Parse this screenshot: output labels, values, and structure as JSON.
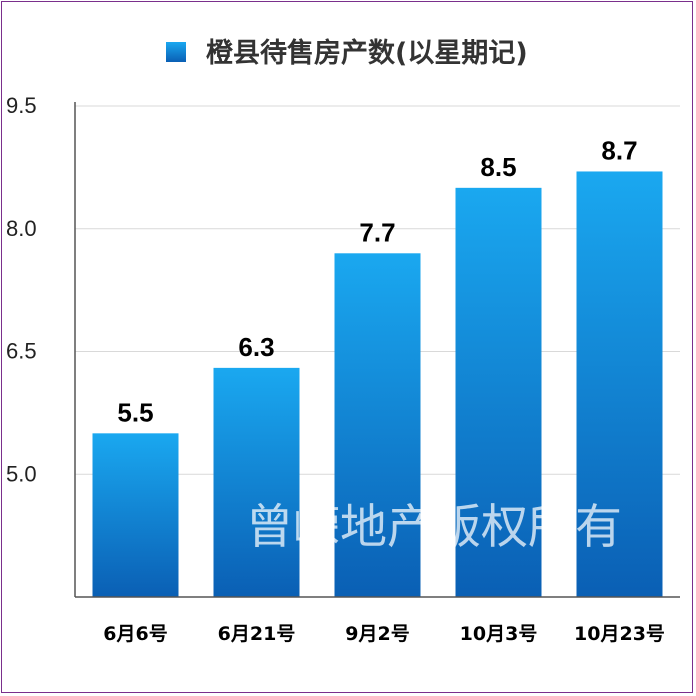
{
  "chart_data": {
    "type": "bar",
    "categories": [
      "6月6号",
      "6月21号",
      "9月2号",
      "10月3号",
      "10月23号"
    ],
    "series": [
      {
        "name": "橙县待售房产数(以星期记)",
        "values": [
          5.5,
          6.3,
          7.7,
          8.5,
          8.7
        ]
      }
    ],
    "data_labels": [
      "5.5",
      "6.3",
      "7.7",
      "8.5",
      "8.7"
    ],
    "ylim": [
      3.5,
      9.5
    ],
    "yticks": [
      5.0,
      6.5,
      8.0,
      9.5
    ],
    "ytick_labels": [
      "5.0",
      "6.5",
      "8.0",
      "9.5"
    ],
    "grid": true,
    "legend_position": "top",
    "bar_color_top": "#1aa8f0",
    "bar_color_bottom": "#0a5fb4",
    "title": "",
    "xlabel": "",
    "ylabel": ""
  },
  "watermark": "曾嵘地产版权所有",
  "colors": {
    "frame": "#7a2f8c",
    "grid": "#d9d9d9",
    "axis": "#555555"
  }
}
